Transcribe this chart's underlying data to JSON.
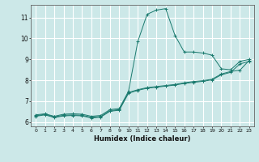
{
  "xlabel": "Humidex (Indice chaleur)",
  "background_color": "#cce8e8",
  "line_color": "#1a7a6e",
  "grid_color": "#ffffff",
  "xlim": [
    -0.5,
    23.5
  ],
  "ylim": [
    5.8,
    11.6
  ],
  "yticks": [
    6,
    7,
    8,
    9,
    10,
    11
  ],
  "xticks": [
    0,
    1,
    2,
    3,
    4,
    5,
    6,
    7,
    8,
    9,
    10,
    11,
    12,
    13,
    14,
    15,
    16,
    17,
    18,
    19,
    20,
    21,
    22,
    23
  ],
  "line1_x": [
    0,
    1,
    2,
    3,
    4,
    5,
    6,
    7,
    8,
    9,
    10,
    11,
    12,
    13,
    14,
    15,
    16,
    17,
    18,
    19,
    20,
    21,
    22,
    23
  ],
  "line1_y": [
    6.35,
    6.4,
    6.28,
    6.38,
    6.4,
    6.38,
    6.28,
    6.32,
    6.6,
    6.65,
    7.48,
    9.85,
    11.15,
    11.35,
    11.42,
    10.15,
    9.35,
    9.35,
    9.3,
    9.2,
    8.55,
    8.5,
    8.9,
    9.0
  ],
  "line2_x": [
    0,
    1,
    2,
    3,
    4,
    5,
    6,
    7,
    8,
    9,
    10,
    11,
    12,
    13,
    14,
    15,
    16,
    17,
    18,
    19,
    20,
    21,
    22,
    23
  ],
  "line2_y": [
    6.3,
    6.38,
    6.25,
    6.33,
    6.35,
    6.33,
    6.23,
    6.27,
    6.55,
    6.6,
    7.42,
    7.55,
    7.65,
    7.7,
    7.75,
    7.8,
    7.88,
    7.94,
    7.98,
    8.05,
    8.3,
    8.42,
    8.48,
    8.95
  ],
  "line3_x": [
    0,
    1,
    2,
    3,
    4,
    5,
    6,
    7,
    8,
    9,
    10,
    11,
    12,
    13,
    14,
    15,
    16,
    17,
    18,
    19,
    20,
    21,
    22,
    23
  ],
  "line3_y": [
    6.28,
    6.35,
    6.22,
    6.3,
    6.32,
    6.3,
    6.2,
    6.24,
    6.52,
    6.57,
    7.38,
    7.52,
    7.62,
    7.67,
    7.72,
    7.77,
    7.85,
    7.9,
    7.95,
    8.02,
    8.26,
    8.38,
    8.78,
    8.9
  ]
}
